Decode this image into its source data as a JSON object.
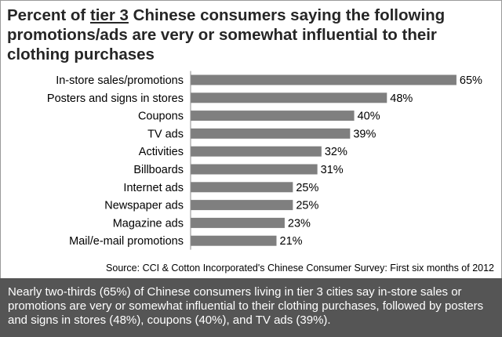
{
  "chart_data": {
    "type": "bar",
    "orientation": "horizontal",
    "title_prefix": "Percent of ",
    "title_emphasis": "tier 3",
    "title_suffix": " Chinese consumers saying the following promotions/ads are very or somewhat influential to their clothing purchases",
    "categories": [
      "In-store sales/promotions",
      "Posters and signs in stores",
      "Coupons",
      "TV ads",
      "Activities",
      "Billboards",
      "Internet ads",
      "Newspaper ads",
      "Magazine ads",
      "Mail/e-mail promotions"
    ],
    "values": [
      65,
      48,
      40,
      39,
      32,
      31,
      25,
      25,
      23,
      21
    ],
    "value_labels": [
      "65%",
      "48%",
      "40%",
      "39%",
      "32%",
      "31%",
      "25%",
      "25%",
      "23%",
      "21%"
    ],
    "xlim": [
      0,
      70
    ],
    "grid": false,
    "bar_color": "#7f7f7f"
  },
  "source": "Source: CCI & Cotton Incorporated's Chinese Consumer Survey: First six months of 2012",
  "summary": "Nearly two-thirds (65%) of Chinese consumers living in tier 3 cities say in-store sales or promotions are very or somewhat influential to their clothing purchases, followed by posters and signs in stores (48%), coupons (40%), and TV ads (39%)."
}
